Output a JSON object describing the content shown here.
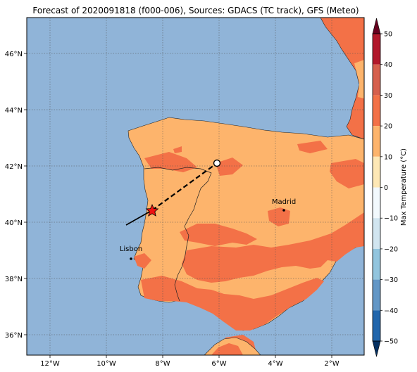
{
  "title": "Forecast of 2020091818 (f000-006), Sources: GDACS (TC track), GFS (Meteo)",
  "colors": {
    "sea": "#90b4d8",
    "land_warm": "#fdb46c",
    "land_hot": "#f37147",
    "track": "#000000",
    "star": "#ee1111"
  },
  "map": {
    "lon_ticks": [
      "12°W",
      "10°W",
      "8°W",
      "6°W",
      "4°W",
      "2°W"
    ],
    "lat_ticks": [
      "46°N",
      "44°N",
      "42°N",
      "40°N",
      "38°N",
      "36°N"
    ],
    "gridlines": "dotted",
    "cities": [
      {
        "name": "Madrid"
      },
      {
        "name": "Lisbon"
      }
    ]
  },
  "legend": {
    "label": "Max Temperature (°C)",
    "ticks": [
      "50",
      "40",
      "30",
      "20",
      "10",
      "0",
      "−10",
      "−20",
      "−30",
      "−40",
      "−50"
    ],
    "band_colors": [
      "#67001f",
      "#b2182b",
      "#d6604d",
      "#f37147",
      "#fdb46c",
      "#fee8b5",
      "#f2f9fd",
      "#d1e5f0",
      "#92c5de",
      "#6397c6",
      "#2166ac",
      "#2b3a8f",
      "#053061"
    ]
  }
}
